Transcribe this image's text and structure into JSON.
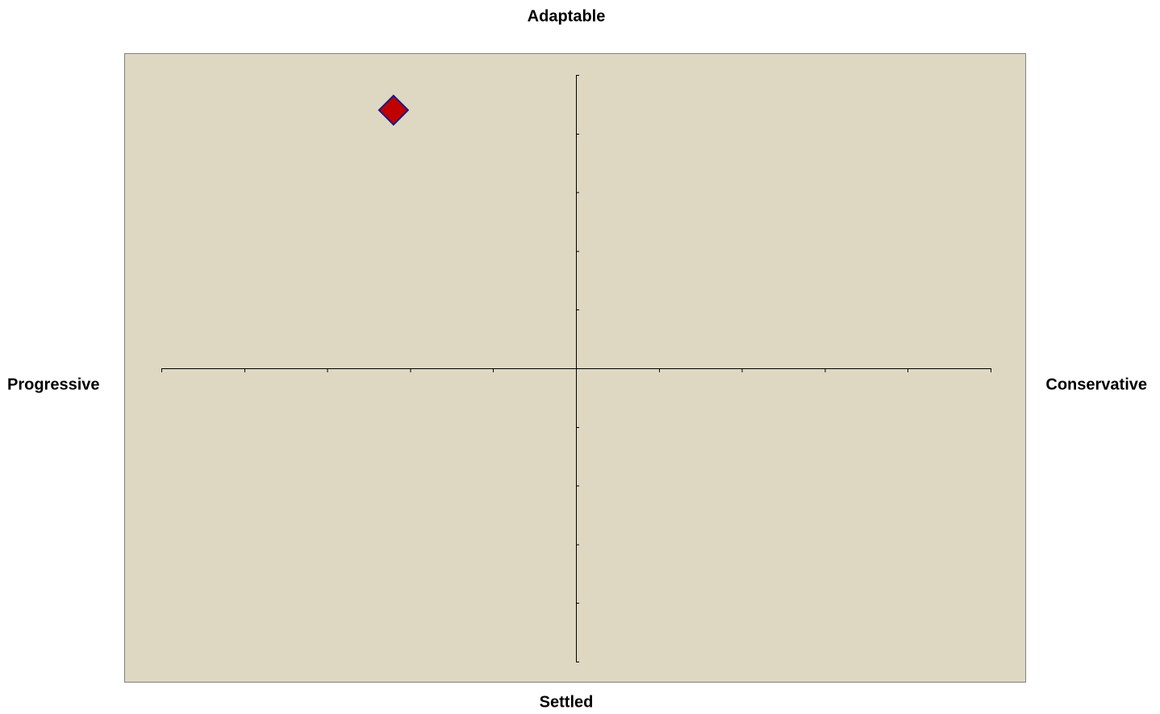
{
  "chart_data": {
    "type": "scatter",
    "axis_labels": {
      "top": "Adaptable",
      "bottom": "Settled",
      "left": "Progressive",
      "right": "Conservative"
    },
    "xlim": [
      -5,
      5
    ],
    "xticks": [
      -5,
      -4,
      -3,
      -2,
      -1,
      0,
      1,
      2,
      3,
      4,
      5
    ],
    "ylim": [
      -5,
      5
    ],
    "yticks": [
      -5,
      -4,
      -3,
      -2,
      -1,
      0,
      1,
      2,
      3,
      4,
      5
    ],
    "background": "#ded8c3",
    "series": [
      {
        "color": "#c00000",
        "edgecolor": "#1a1a80",
        "marker": "diamond",
        "x": [
          -2.2
        ],
        "values": [
          4.4
        ]
      }
    ]
  }
}
